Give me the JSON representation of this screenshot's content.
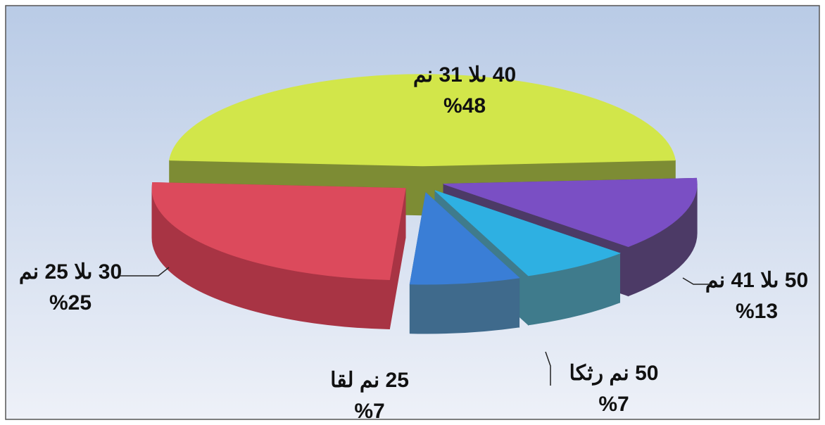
{
  "chart_data": {
    "type": "pie3d",
    "categories": [
      "من 31 الى 40",
      "من 41 الى 50",
      "اكثر من 50",
      "اقل من 25",
      "من 25 الى 30"
    ],
    "values": [
      48,
      13,
      7,
      7,
      25
    ],
    "value_labels": [
      "%48",
      "%13",
      "%7",
      "%7",
      "%25"
    ],
    "colors": [
      "#d2e64a",
      "#7a4fc4",
      "#2eb0e2",
      "#3a7ed6",
      "#dc4a5c"
    ],
    "side_colors": [
      "#7d8c34",
      "#4c3a66",
      "#3f7b8c",
      "#3f6a8c",
      "#a83444"
    ]
  }
}
